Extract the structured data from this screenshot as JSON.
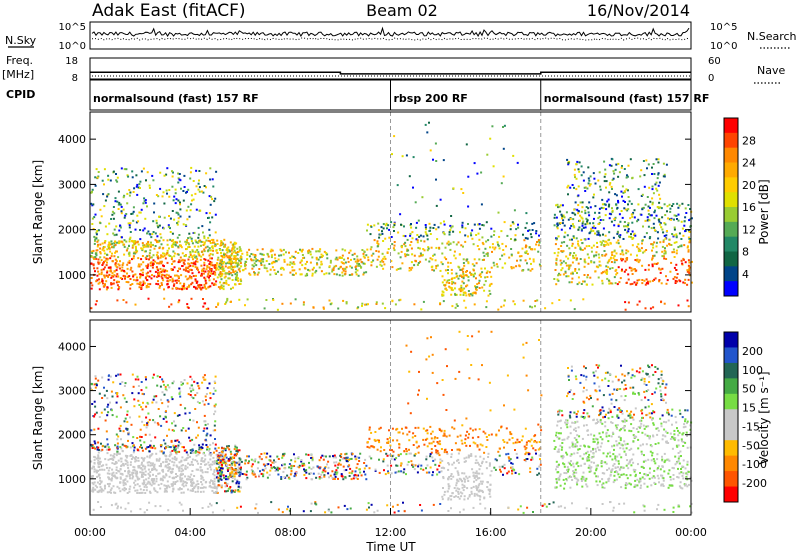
{
  "header": {
    "title_left": "Adak East (fitACF)",
    "title_center": "Beam 02",
    "title_right": "16/Nov/2014"
  },
  "chart_data": {
    "type": "heatmap",
    "xlabel": "Time UT",
    "x_ticks": [
      "00:00",
      "04:00",
      "08:00",
      "12:00",
      "16:00",
      "20:00",
      "00:00"
    ],
    "x_range_hours": [
      0,
      24
    ],
    "mode_changes_hours": [
      12,
      18
    ],
    "panels": [
      {
        "id": "nsky",
        "label": "N.Sky",
        "right_label": "N.Search",
        "left_ticks": [
          "10^5",
          "10^0"
        ],
        "right_ticks": [
          "10^5",
          "10^0"
        ]
      },
      {
        "id": "freq",
        "label_top": "Freq.",
        "label_unit": "[MHz]",
        "right_label": "Nave",
        "left_ticks": [
          "18",
          "8"
        ],
        "right_ticks": [
          "60",
          "0"
        ],
        "freq_steps": [
          {
            "start": 0,
            "end": 10,
            "value": 11.2
          },
          {
            "start": 10,
            "end": 18,
            "value": 10.3
          },
          {
            "start": 18,
            "end": 24,
            "value": 11.2
          }
        ]
      },
      {
        "id": "cpid",
        "label": "CPID",
        "segments": [
          {
            "start": 0,
            "text": "normalsound (fast) 157 RF"
          },
          {
            "start": 12,
            "text": "rbsp 200 RF"
          },
          {
            "start": 18,
            "text": "normalsound (fast) 157 RF"
          }
        ]
      },
      {
        "id": "power",
        "ylabel": "Slant Range [km]",
        "yticks": [
          "1000",
          "2000",
          "3000",
          "4000"
        ],
        "ylim": [
          180,
          4600
        ],
        "colorbar_label": "Power [dB]",
        "colorbar_ticks": [
          "28",
          "24",
          "20",
          "16",
          "12",
          "8",
          "4"
        ],
        "colorbar_colors": [
          "#ff0000",
          "#ff4400",
          "#ff8800",
          "#ffaa00",
          "#ffcc00",
          "#e0e000",
          "#99cc33",
          "#55aa55",
          "#228866",
          "#116644",
          "#004488",
          "#0000ff"
        ]
      },
      {
        "id": "velocity",
        "ylabel": "Slant Range [km]",
        "yticks": [
          "1000",
          "2000",
          "3000",
          "4000"
        ],
        "ylim": [
          180,
          4600
        ],
        "colorbar_label": "Velocity [m s⁻¹]",
        "colorbar_ticks": [
          "200",
          "100",
          "50",
          "15",
          "-15",
          "-50",
          "-100",
          "-200"
        ],
        "colorbar_colors": [
          "#0000aa",
          "#2255cc",
          "#226655",
          "#44aa44",
          "#77dd44",
          "#c8c8c8",
          "#c8c8c8",
          "#ffbb00",
          "#ff8800",
          "#ff5500",
          "#ff0000"
        ]
      }
    ]
  }
}
